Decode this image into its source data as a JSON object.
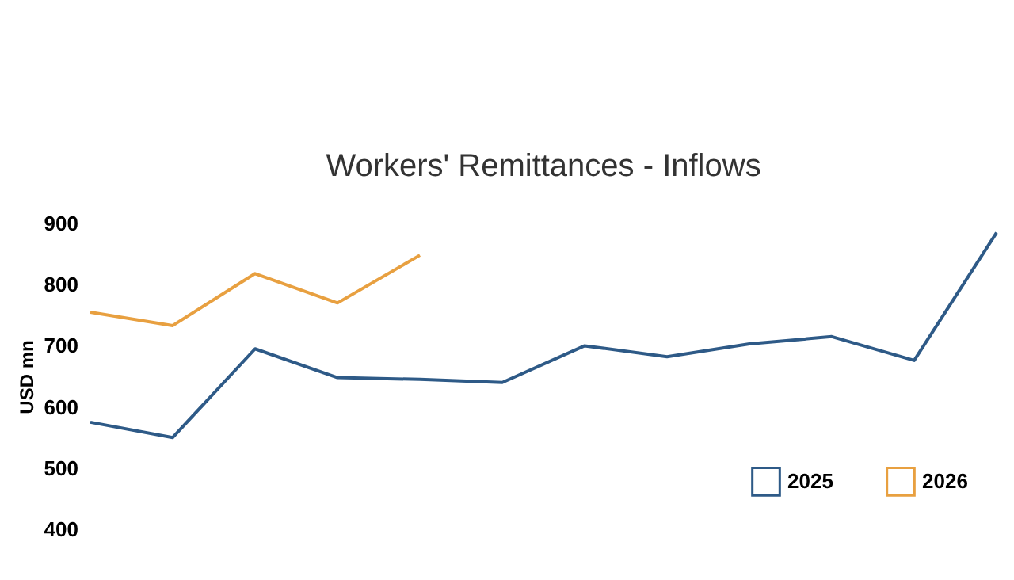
{
  "chart_data": {
    "type": "line",
    "title": "Workers' Remittances  - Inflows",
    "ylabel": "USD mn",
    "categories": [
      null,
      null,
      null,
      null,
      null,
      null,
      null,
      null,
      null,
      null,
      null,
      null
    ],
    "series": [
      {
        "name": "2025",
        "color": "#2e5a87",
        "values": [
          575,
          550,
          695,
          648,
          645,
          640,
          700,
          682,
          703,
          715,
          676,
          885
        ]
      },
      {
        "name": "2026",
        "color": "#e8a040",
        "values": [
          755,
          733,
          818,
          770,
          848,
          null,
          null,
          null,
          null,
          null,
          null,
          null
        ]
      }
    ],
    "ylim": [
      400,
      900
    ],
    "yticks": [
      400,
      500,
      600,
      700,
      800,
      900
    ],
    "grid": false,
    "legend": "bottom right",
    "tick_labels": "y",
    "marker": "none",
    "line_style": "solid"
  }
}
